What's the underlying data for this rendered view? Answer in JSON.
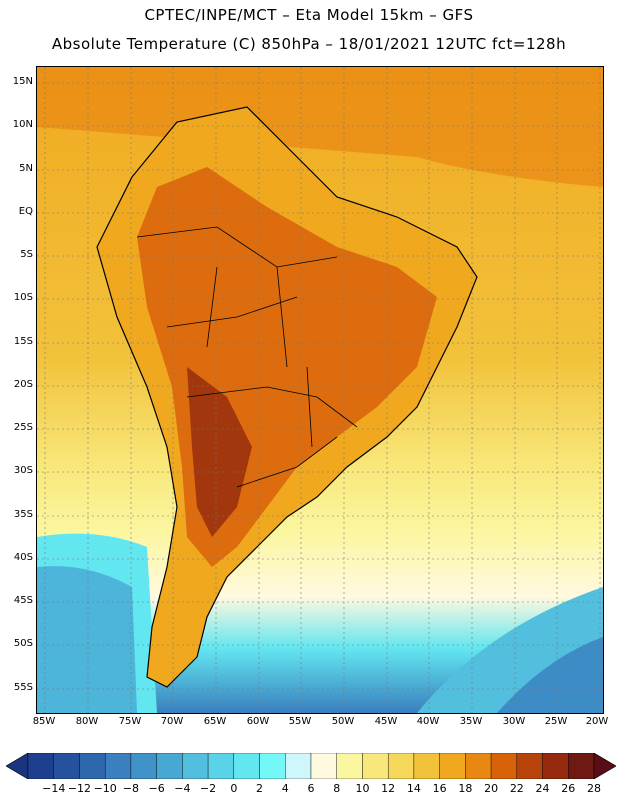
{
  "header": {
    "line1": "CPTEC/INPE/MCT –  Eta Model 15km – GFS",
    "line2": "Absolute Temperature (C) 850hPa – 18/01/2021 12UTC fct=128h"
  },
  "map": {
    "lat_ticks": [
      "15N",
      "10N",
      "5N",
      "EQ",
      "5S",
      "10S",
      "15S",
      "20S",
      "25S",
      "30S",
      "35S",
      "40S",
      "45S",
      "50S",
      "55S"
    ],
    "lon_ticks": [
      "85W",
      "80W",
      "75W",
      "70W",
      "65W",
      "60W",
      "55W",
      "50W",
      "45W",
      "40W",
      "35W",
      "30W",
      "25W",
      "20W"
    ]
  },
  "legend": {
    "labels": [
      "-14",
      "-12",
      "-10",
      "-8",
      "-6",
      "-4",
      "-2",
      "0",
      "2",
      "4",
      "6",
      "8",
      "10",
      "12",
      "14",
      "16",
      "18",
      "20",
      "22",
      "24",
      "26",
      "28"
    ],
    "colors": [
      "#1e3f8f",
      "#24529c",
      "#2f67ad",
      "#3a7fbe",
      "#3f93c9",
      "#48a8d4",
      "#52bfdf",
      "#5ad3e8",
      "#62e6f0",
      "#76f7f7",
      "#cff7fb",
      "#fff9e0",
      "#fbf6a0",
      "#f8e87b",
      "#f5d75a",
      "#f2c23b",
      "#f0a91f",
      "#e88812",
      "#d8620a",
      "#b8430a",
      "#94290d",
      "#6e1a12"
    ],
    "left_arrow_color": "#1a3580",
    "right_arrow_color": "#5a0d17"
  }
}
